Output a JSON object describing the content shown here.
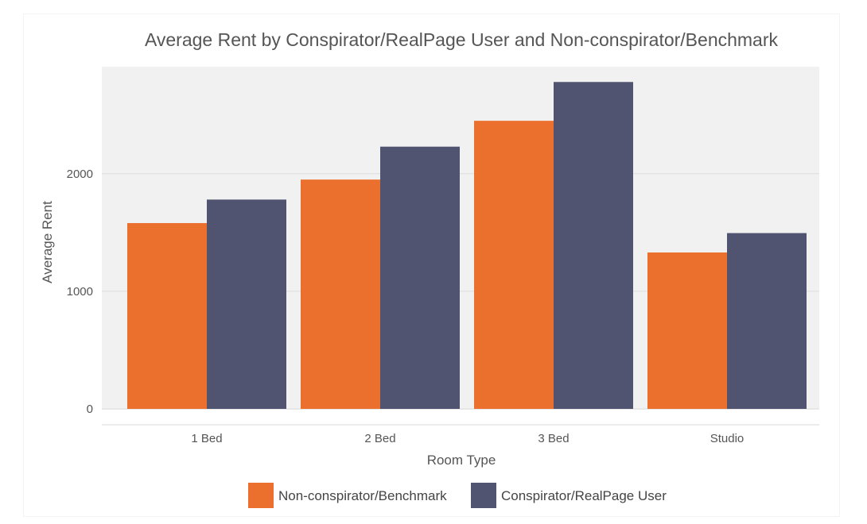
{
  "chart_data": {
    "type": "bar",
    "title": "Average Rent by Conspirator/RealPage User and Non-conspirator/Benchmark",
    "xlabel": "Room Type",
    "ylabel": "Average Rent",
    "categories": [
      "1 Bed",
      "2 Bed",
      "3 Bed",
      "Studio"
    ],
    "series": [
      {
        "name": "Non-conspirator/Benchmark",
        "color": "#ec702d",
        "values": [
          1580,
          1950,
          2450,
          1330
        ]
      },
      {
        "name": "Conspirator/RealPage User",
        "color": "#515470",
        "values": [
          1780,
          2230,
          2780,
          1495
        ]
      }
    ],
    "yticks": [
      0,
      1000,
      2000
    ],
    "ylim": [
      0,
      2910
    ],
    "grid": true,
    "legend_position": "bottom"
  }
}
